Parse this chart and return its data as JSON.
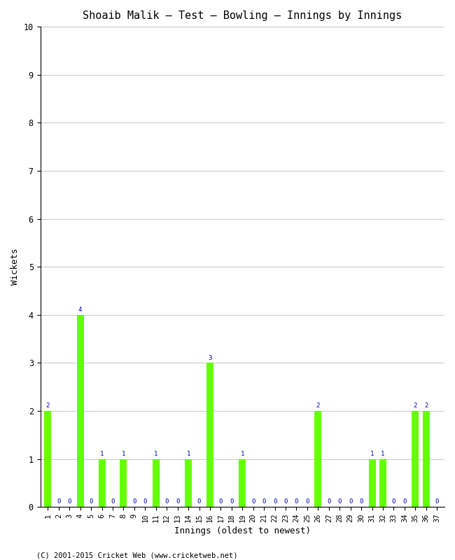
{
  "title": "Shoaib Malik – Test – Bowling – Innings by Innings",
  "xlabel": "Innings (oldest to newest)",
  "ylabel": "Wickets",
  "ylim": [
    0,
    10
  ],
  "yticks": [
    0,
    1,
    2,
    3,
    4,
    5,
    6,
    7,
    8,
    9,
    10
  ],
  "innings": [
    1,
    2,
    3,
    4,
    5,
    6,
    7,
    8,
    9,
    10,
    11,
    12,
    13,
    14,
    15,
    16,
    17,
    18,
    19,
    20,
    21,
    22,
    23,
    24,
    25,
    26,
    27,
    28,
    29,
    30,
    31,
    32,
    33,
    34,
    35,
    36,
    37
  ],
  "wickets": [
    2,
    0,
    0,
    4,
    0,
    1,
    0,
    1,
    0,
    0,
    1,
    0,
    0,
    1,
    0,
    3,
    0,
    0,
    1,
    0,
    0,
    0,
    0,
    0,
    0,
    2,
    0,
    0,
    0,
    0,
    1,
    1,
    0,
    0,
    2,
    2,
    0
  ],
  "bar_color": "#66ff00",
  "label_color": "#0000bb",
  "bg_color": "#ffffff",
  "grid_color": "#cccccc",
  "title_fontsize": 11,
  "axis_label_fontsize": 9,
  "bar_label_fontsize": 6.5,
  "tick_fontsize": 7.5,
  "copyright": "(C) 2001-2015 Cricket Web (www.cricketweb.net)",
  "copyright_fontsize": 7.5
}
